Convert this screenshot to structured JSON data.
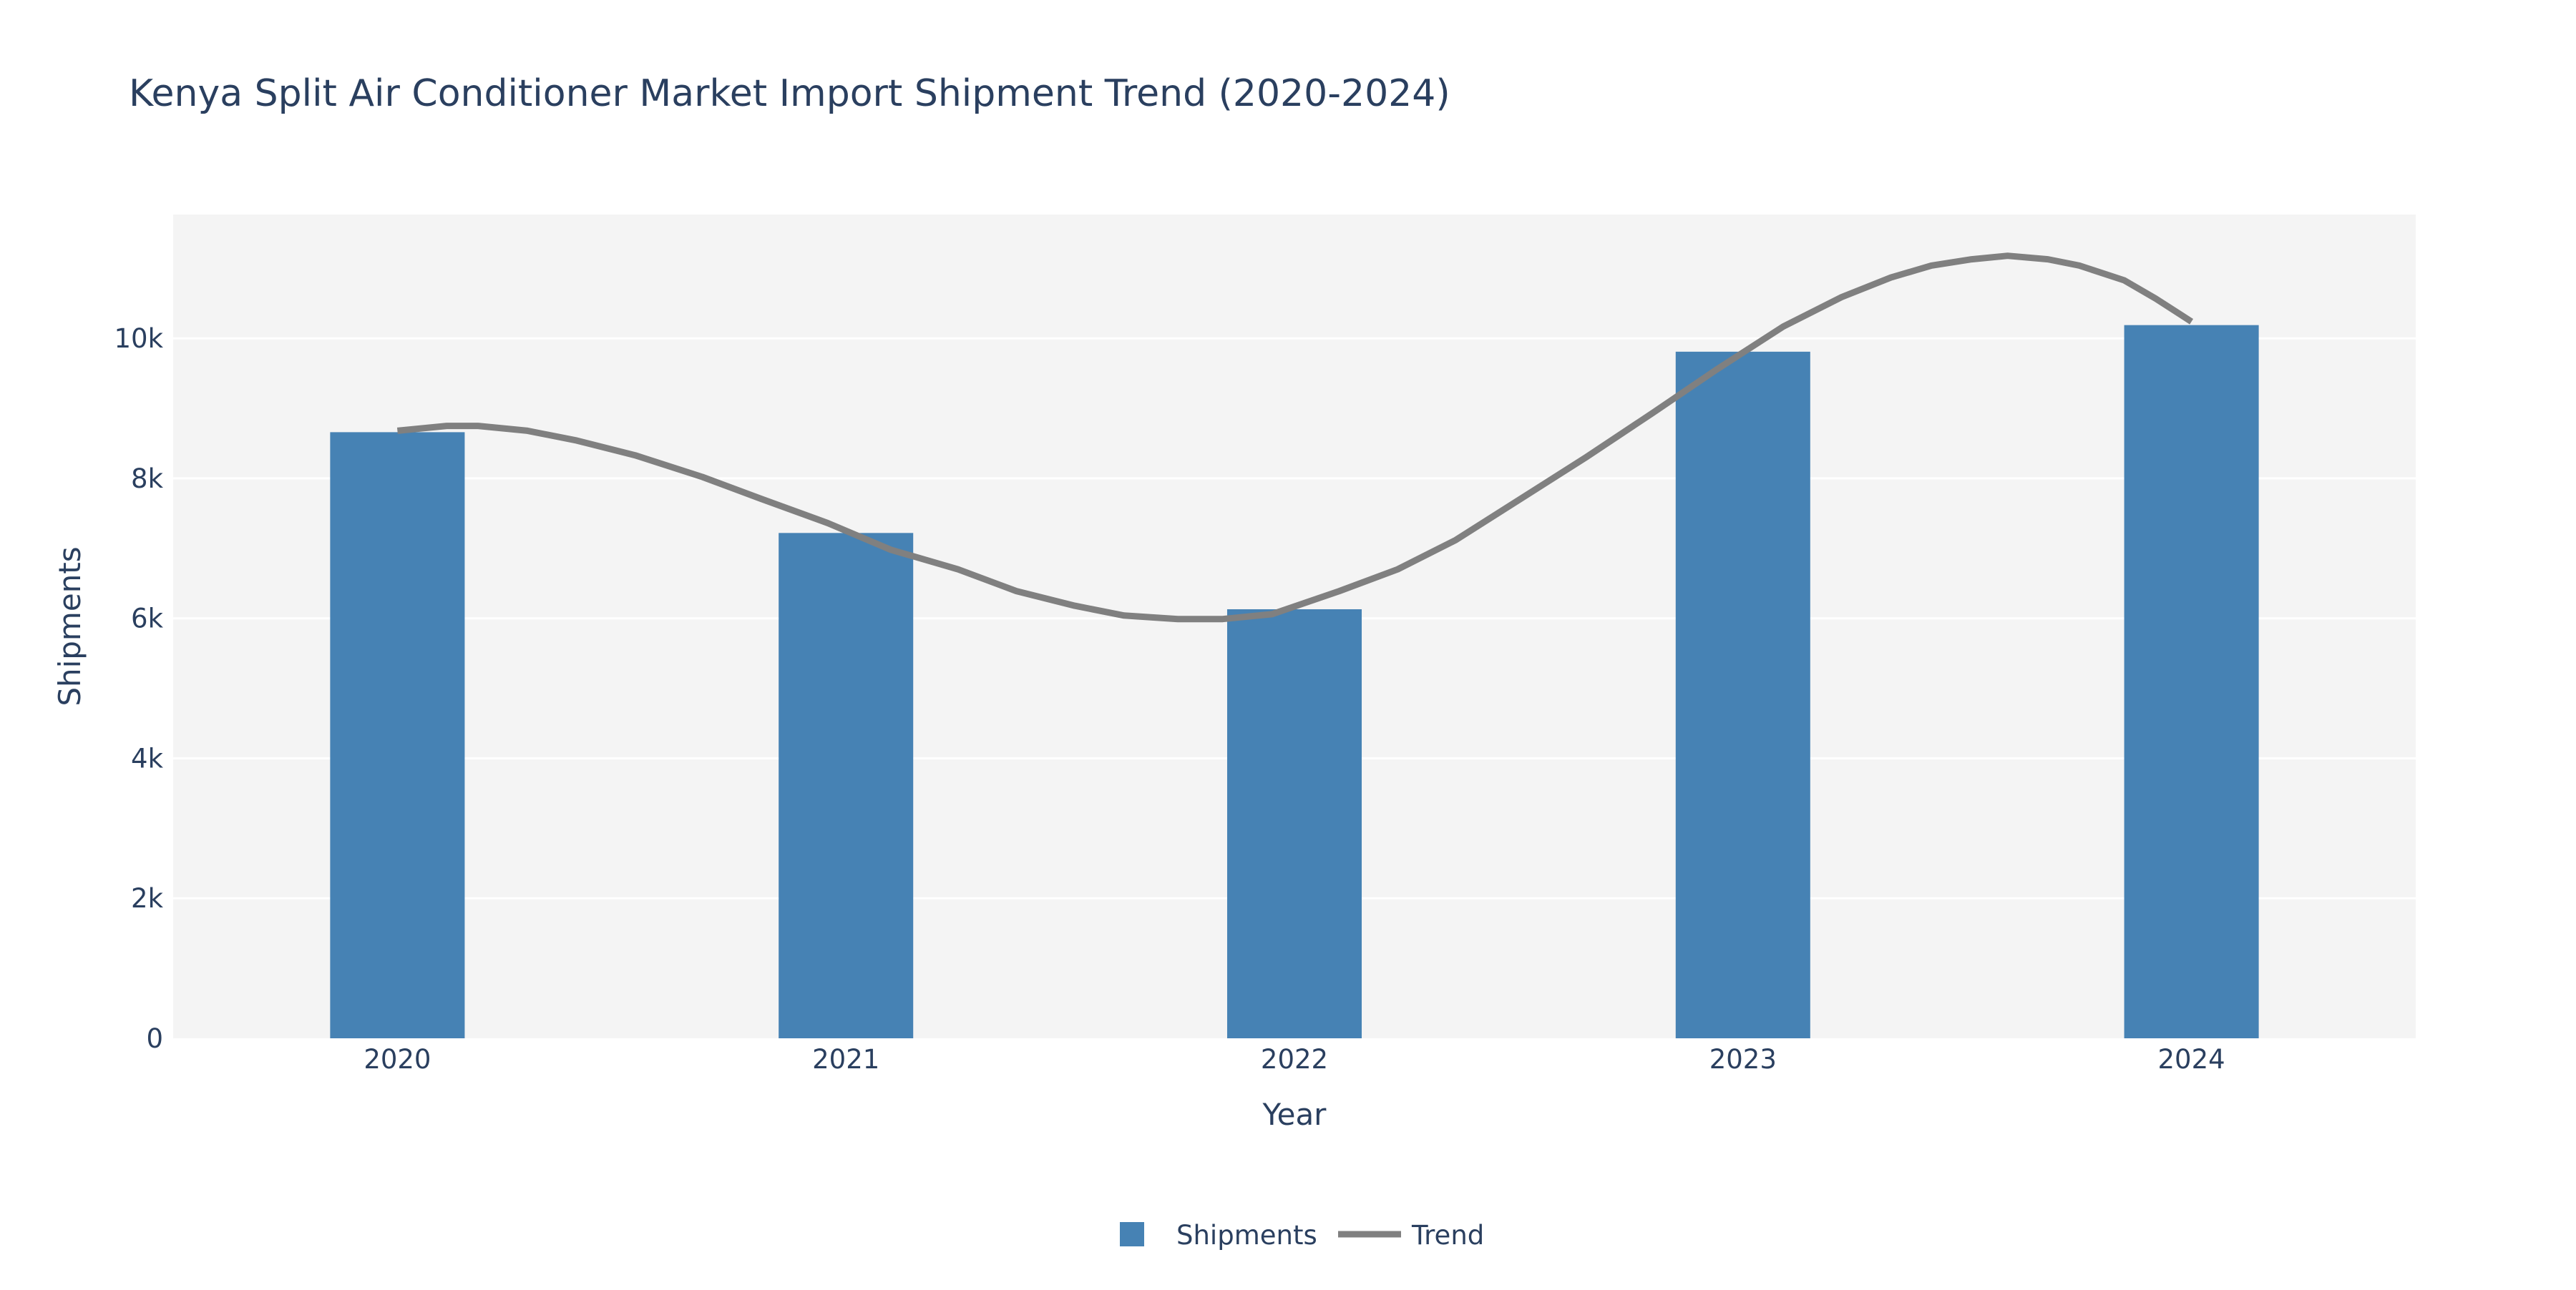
{
  "chart_data": {
    "type": "bar",
    "title": "Kenya Split Air Conditioner Market Import Shipment Trend (2020-2024)",
    "xlabel": "Year",
    "ylabel": "Shipments",
    "categories": [
      "2020",
      "2021",
      "2022",
      "2023",
      "2024"
    ],
    "ylim": [
      0,
      11770
    ],
    "yticks": [
      0,
      2000,
      4000,
      6000,
      8000,
      10000
    ],
    "ytick_labels": [
      "0",
      "2k",
      "4k",
      "6k",
      "8k",
      "10k"
    ],
    "grid": true,
    "legend_position": "bottom-center",
    "series": [
      {
        "name": "Shipments",
        "type": "bar",
        "color": "#4682b4",
        "values": [
          8660,
          7220,
          6130,
          9810,
          10190
        ]
      },
      {
        "name": "Trend",
        "type": "line",
        "color": "#808080",
        "x": [
          2020.0,
          2020.11,
          2020.18,
          2020.29,
          2020.4,
          2020.53,
          2020.68,
          2020.81,
          2020.96,
          2021.1,
          2021.25,
          2021.38,
          2021.51,
          2021.62,
          2021.74,
          2021.84,
          2021.95,
          2022.1,
          2022.23,
          2022.36,
          2022.5,
          2022.65,
          2022.8,
          2022.94,
          2023.09,
          2023.22,
          2023.33,
          2023.42,
          2023.51,
          2023.59,
          2023.68,
          2023.75,
          2023.85,
          2023.92,
          2024.0
        ],
        "values": [
          8680,
          8750,
          8750,
          8680,
          8540,
          8330,
          8020,
          7710,
          7360,
          6980,
          6700,
          6390,
          6180,
          6040,
          5990,
          5990,
          6060,
          6390,
          6700,
          7120,
          7690,
          8300,
          8940,
          9550,
          10170,
          10590,
          10870,
          11040,
          11130,
          11180,
          11130,
          11040,
          10830,
          10570,
          10240
        ]
      }
    ]
  }
}
